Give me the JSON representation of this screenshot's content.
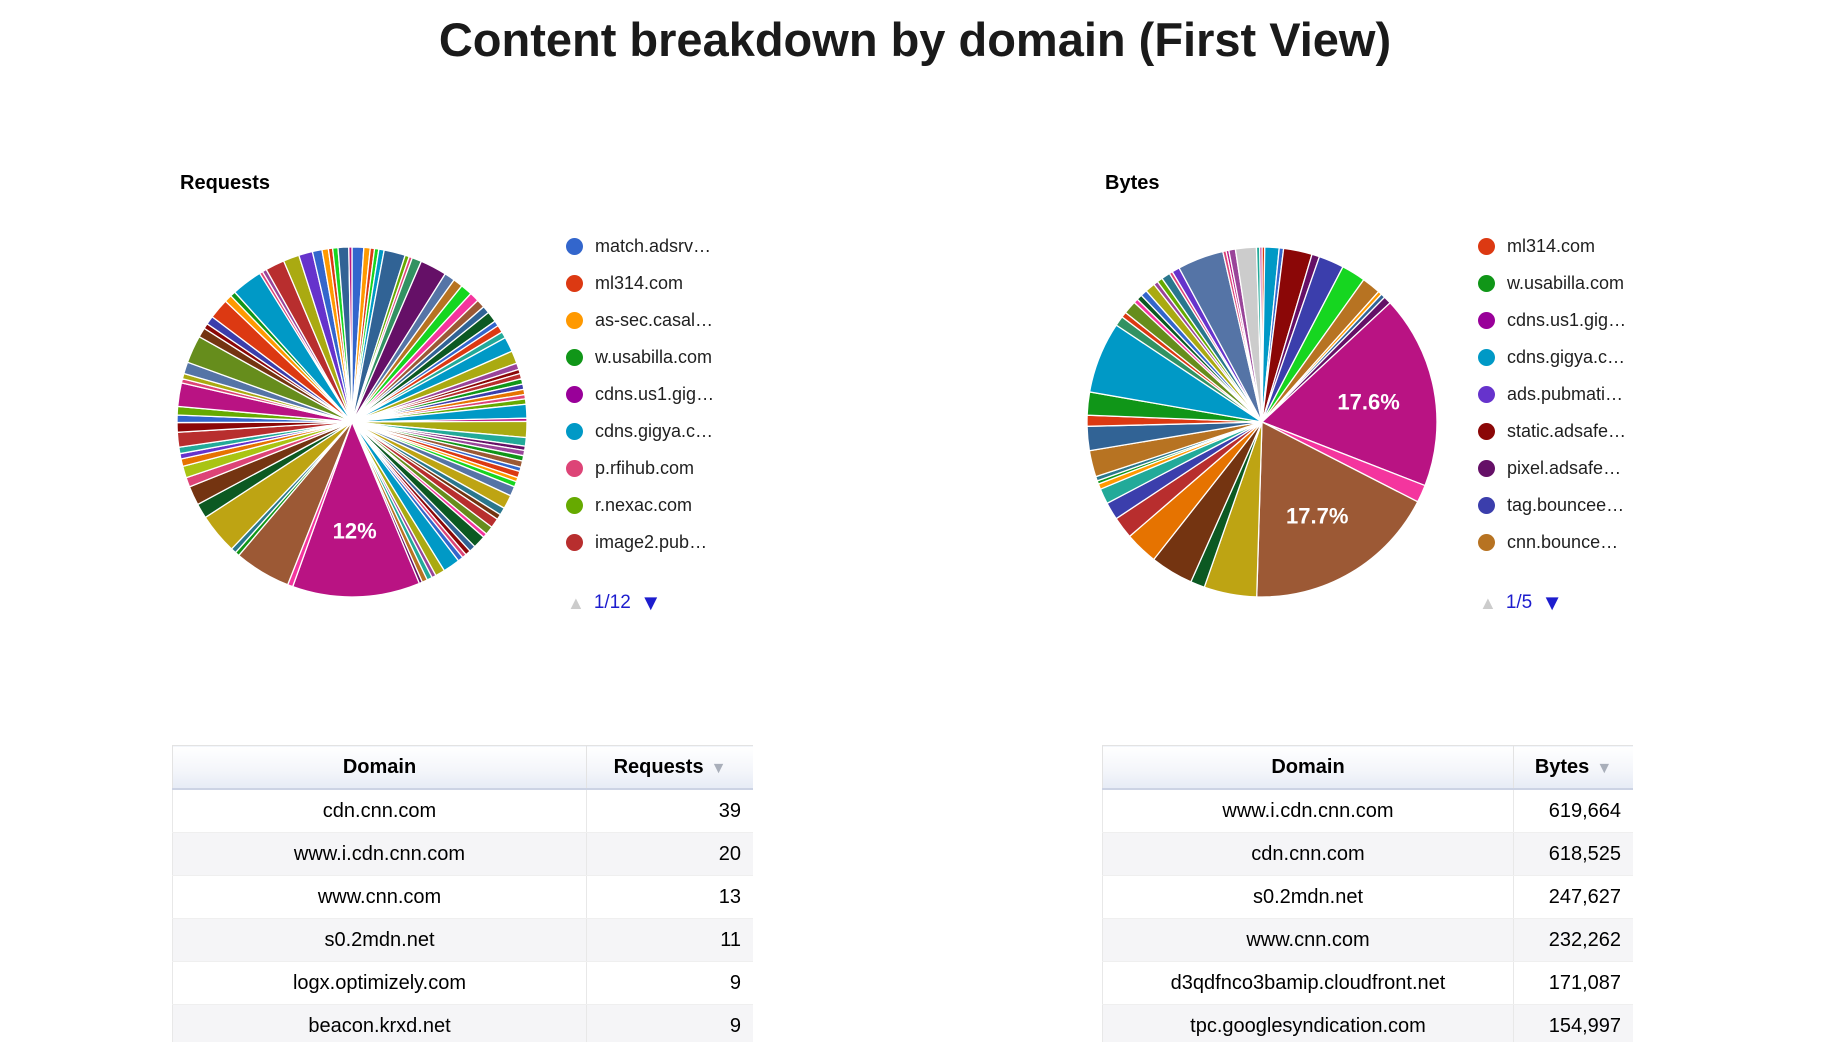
{
  "page": {
    "title": "Content breakdown by domain (First View)"
  },
  "colors": {
    "pager_blue": "#1d1dce",
    "pager_disabled": "#cccccc",
    "sort_arrow": "#a9afba",
    "big_slice_magenta": "#B91383",
    "big_slice_brown": "#9C5935"
  },
  "sections": {
    "requests": {
      "label": "Requests",
      "pager": "1/12",
      "pager_up_icon": "▲",
      "pager_down_icon": "▼"
    },
    "bytes": {
      "label": "Bytes",
      "pager": "1/5",
      "pager_up_icon": "▲",
      "pager_down_icon": "▼"
    }
  },
  "chart_data": [
    {
      "type": "pie",
      "name": "requests",
      "title": "Requests",
      "legend_position": "right",
      "legend": [
        {
          "label": "match.adsrv…",
          "color": "#3366CC"
        },
        {
          "label": "ml314.com",
          "color": "#DC3912"
        },
        {
          "label": "as-sec.casal…",
          "color": "#FF9900"
        },
        {
          "label": "w.usabilla.com",
          "color": "#109618"
        },
        {
          "label": "cdns.us1.gig…",
          "color": "#990099"
        },
        {
          "label": "cdns.gigya.c…",
          "color": "#0099C6"
        },
        {
          "label": "p.rfihub.com",
          "color": "#DD4477"
        },
        {
          "label": "r.nexac.com",
          "color": "#66AA00"
        },
        {
          "label": "image2.pub…",
          "color": "#B82E2E"
        }
      ],
      "legend_pager": "1/12",
      "visible_percent_labels": [
        "12%"
      ],
      "slices": [
        [
          "#3366CC",
          1.1
        ],
        [
          "#FF9900",
          0.6
        ],
        [
          "#DC3912",
          0.4
        ],
        [
          "#16D620",
          0.4
        ],
        [
          "#0099C6",
          0.5
        ],
        [
          "#316395",
          2.0
        ],
        [
          "#66AA00",
          0.4
        ],
        [
          "#DD4477",
          0.3
        ],
        [
          "#329262",
          0.9
        ],
        [
          "#651067",
          2.5
        ],
        [
          "#5574A6",
          1.0
        ],
        [
          "#B77322",
          0.9
        ],
        [
          "#16D620",
          1.1
        ],
        [
          "#F4359E",
          0.9
        ],
        [
          "#9C5935",
          0.8
        ],
        [
          "#316395",
          0.7
        ],
        [
          "#0C5922",
          1.0
        ],
        [
          "#3366CC",
          0.5
        ],
        [
          "#DC3912",
          0.7
        ],
        [
          "#22AA99",
          0.6
        ],
        [
          "#0099C6",
          1.4
        ],
        [
          "#AAAA11",
          1.2
        ],
        [
          "#994499",
          0.6
        ],
        [
          "#8B0707",
          0.4
        ],
        [
          "#B82E2E",
          0.5
        ],
        [
          "#109618",
          0.5
        ],
        [
          "#3B3EAC",
          0.5
        ],
        [
          "#E67300",
          0.5
        ],
        [
          "#DD4477",
          0.4
        ],
        [
          "#66AA00",
          0.5
        ],
        [
          "#0099C6",
          1.3
        ],
        [
          "#B91383",
          0.3
        ],
        [
          "#AAAA11",
          1.5
        ],
        [
          "#22AA99",
          0.8
        ],
        [
          "#651067",
          0.4
        ],
        [
          "#994499",
          0.5
        ],
        [
          "#109618",
          0.5
        ],
        [
          "#9C5935",
          0.6
        ],
        [
          "#3366CC",
          0.4
        ],
        [
          "#DC3912",
          0.6
        ],
        [
          "#FF9900",
          0.4
        ],
        [
          "#16D620",
          0.5
        ],
        [
          "#5574A6",
          0.9
        ],
        [
          "#BEA413",
          1.3
        ],
        [
          "#2A778D",
          0.7
        ],
        [
          "#743411",
          0.5
        ],
        [
          "#B82E2E",
          0.9
        ],
        [
          "#668D1C",
          0.8
        ],
        [
          "#F4359E",
          0.4
        ],
        [
          "#0C5922",
          1.2
        ],
        [
          "#316395",
          0.6
        ],
        [
          "#8B0707",
          0.5
        ],
        [
          "#DD4477",
          0.4
        ],
        [
          "#3366CC",
          0.5
        ],
        [
          "#0099C6",
          1.6
        ],
        [
          "#AAAA11",
          0.9
        ],
        [
          "#994499",
          0.4
        ],
        [
          "#22AA99",
          0.5
        ],
        [
          "#B77322",
          0.5
        ],
        [
          "#651067",
          0.3
        ],
        [
          "#B91383",
          12.0,
          "12%"
        ],
        [
          "#F4359E",
          0.5
        ],
        [
          "#9C5935",
          5.3
        ],
        [
          "#109618",
          0.4
        ],
        [
          "#2A778D",
          0.5
        ],
        [
          "#BEA413",
          3.8
        ],
        [
          "#0C5922",
          1.4
        ],
        [
          "#743411",
          1.8
        ],
        [
          "#DD4477",
          0.9
        ],
        [
          "#A9C413",
          1.1
        ],
        [
          "#E67300",
          0.7
        ],
        [
          "#6633CC",
          0.5
        ],
        [
          "#22AA99",
          0.6
        ],
        [
          "#B82E2E",
          1.4
        ],
        [
          "#8B0707",
          0.9
        ],
        [
          "#3366CC",
          0.7
        ],
        [
          "#66AA00",
          0.8
        ],
        [
          "#B91383",
          2.2
        ],
        [
          "#DD4477",
          0.4
        ],
        [
          "#AAAA11",
          0.5
        ],
        [
          "#5574A6",
          1.1
        ],
        [
          "#668D1C",
          2.6
        ],
        [
          "#743411",
          0.9
        ],
        [
          "#8B0707",
          0.5
        ],
        [
          "#3B3EAC",
          0.8
        ],
        [
          "#DC3912",
          1.9
        ],
        [
          "#FF9900",
          0.7
        ],
        [
          "#109618",
          0.5
        ],
        [
          "#0099C6",
          2.9
        ],
        [
          "#DD4477",
          0.3
        ],
        [
          "#994499",
          0.4
        ],
        [
          "#B82E2E",
          1.8
        ],
        [
          "#AAAA11",
          1.5
        ],
        [
          "#6633CC",
          1.3
        ],
        [
          "#3366CC",
          0.9
        ],
        [
          "#FF9900",
          0.6
        ],
        [
          "#DC3912",
          0.4
        ],
        [
          "#16D620",
          0.5
        ],
        [
          "#316395",
          1.0
        ],
        [
          "#B91383",
          0.3
        ]
      ]
    },
    {
      "type": "pie",
      "name": "bytes",
      "title": "Bytes",
      "legend_position": "right",
      "legend": [
        {
          "label": "ml314.com",
          "color": "#DC3912"
        },
        {
          "label": "w.usabilla.com",
          "color": "#109618"
        },
        {
          "label": "cdns.us1.gig…",
          "color": "#990099"
        },
        {
          "label": "cdns.gigya.c…",
          "color": "#0099C6"
        },
        {
          "label": "ads.pubmati…",
          "color": "#6633CC"
        },
        {
          "label": "static.adsafe…",
          "color": "#8B0707"
        },
        {
          "label": "pixel.adsafe…",
          "color": "#651067"
        },
        {
          "label": "tag.bouncee…",
          "color": "#3B3EAC"
        },
        {
          "label": "cnn.bounce…",
          "color": "#B77322"
        }
      ],
      "legend_pager": "1/5",
      "visible_percent_labels": [
        "17.6%",
        "17.7%"
      ],
      "slices": [
        [
          "#DC3912",
          0.25
        ],
        [
          "#0099C6",
          1.3
        ],
        [
          "#3366CC",
          0.4
        ],
        [
          "#8B0707",
          2.6
        ],
        [
          "#651067",
          0.7
        ],
        [
          "#3B3EAC",
          2.3
        ],
        [
          "#16D620",
          2.2
        ],
        [
          "#B77322",
          1.7
        ],
        [
          "#FF9900",
          0.35
        ],
        [
          "#316395",
          0.4
        ],
        [
          "#651067",
          0.7
        ],
        [
          "#B91383",
          17.6,
          "17.6%"
        ],
        [
          "#F4359E",
          1.6
        ],
        [
          "#9C5935",
          17.7,
          "17.7%"
        ],
        [
          "#BEA413",
          4.8
        ],
        [
          "#0C5922",
          1.3
        ],
        [
          "#743411",
          3.9
        ],
        [
          "#E67300",
          3.0
        ],
        [
          "#B82E2E",
          2.0
        ],
        [
          "#3B3EAC",
          1.6
        ],
        [
          "#22AA99",
          1.4
        ],
        [
          "#FF9900",
          0.5
        ],
        [
          "#109618",
          0.3
        ],
        [
          "#2A778D",
          0.4
        ],
        [
          "#B77322",
          2.4
        ],
        [
          "#316395",
          2.2
        ],
        [
          "#DC3912",
          1.0
        ],
        [
          "#109618",
          2.1
        ],
        [
          "#0099C6",
          6.5
        ],
        [
          "#329262",
          0.9
        ],
        [
          "#DC3912",
          0.5
        ],
        [
          "#668D1C",
          1.2
        ],
        [
          "#F4359E",
          0.4
        ],
        [
          "#0C5922",
          0.5
        ],
        [
          "#3366CC",
          0.6
        ],
        [
          "#AAAA11",
          0.9
        ],
        [
          "#994499",
          0.4
        ],
        [
          "#66AA00",
          0.5
        ],
        [
          "#2A778D",
          0.8
        ],
        [
          "#DD4477",
          0.3
        ],
        [
          "#6633CC",
          0.7
        ],
        [
          "#5574A6",
          4.2
        ],
        [
          "#DD4477",
          0.3
        ],
        [
          "#B91383",
          0.25
        ],
        [
          "#994499",
          0.6
        ],
        [
          "#CCCCCC",
          1.9
        ],
        [
          "#22AA99",
          0.3
        ],
        [
          "#B91383",
          0.2
        ]
      ]
    }
  ],
  "tables": [
    {
      "name": "requests",
      "headers": [
        "Domain",
        "Requests"
      ],
      "sorted_column": "Requests",
      "sort_icon": "▼",
      "rows": [
        [
          "cdn.cnn.com",
          "39"
        ],
        [
          "www.i.cdn.cnn.com",
          "20"
        ],
        [
          "www.cnn.com",
          "13"
        ],
        [
          "s0.2mdn.net",
          "11"
        ],
        [
          "logx.optimizely.com",
          "9"
        ],
        [
          "beacon.krxd.net",
          "9"
        ]
      ]
    },
    {
      "name": "bytes",
      "headers": [
        "Domain",
        "Bytes"
      ],
      "sorted_column": "Bytes",
      "sort_icon": "▼",
      "rows": [
        [
          "www.i.cdn.cnn.com",
          "619,664"
        ],
        [
          "cdn.cnn.com",
          "618,525"
        ],
        [
          "s0.2mdn.net",
          "247,627"
        ],
        [
          "www.cnn.com",
          "232,262"
        ],
        [
          "d3qdfnco3bamip.cloudfront.net",
          "171,087"
        ],
        [
          "tpc.googlesyndication.com",
          "154,997"
        ]
      ]
    }
  ]
}
